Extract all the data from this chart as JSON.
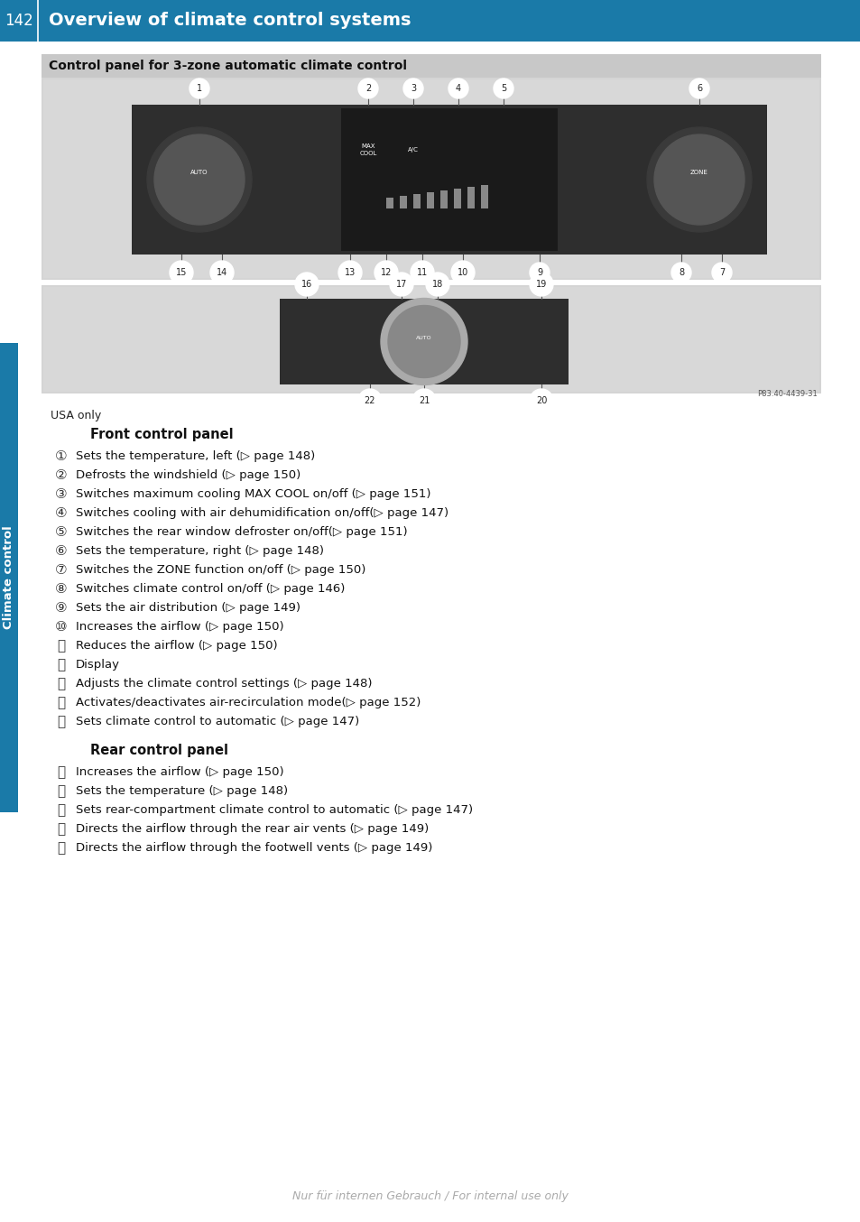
{
  "page_number": "142",
  "header_title": "Overview of climate control systems",
  "header_bg": "#1a7aa8",
  "header_text_color": "#ffffff",
  "sidebar_label": "Climate control",
  "sidebar_color": "#1a7aa8",
  "panel_box_title": "Control panel for 3-zone automatic climate control",
  "panel_box_bg": "#c8c8c8",
  "usa_only": "USA only",
  "front_panel_header": "Front control panel",
  "rear_panel_header": "Rear control panel",
  "front_items": [
    [
      "①",
      "Sets the temperature, left (▷ page 148)"
    ],
    [
      "②",
      "Defrosts the windshield (▷ page 150)"
    ],
    [
      "③",
      "Switches maximum cooling MAX COOL on/off (▷ page 151)"
    ],
    [
      "④",
      "Switches cooling with air dehumidification on/off(▷ page 147)"
    ],
    [
      "⑤",
      "Switches the rear window defroster on/off(▷ page 151)"
    ],
    [
      "⑥",
      "Sets the temperature, right (▷ page 148)"
    ],
    [
      "⑦",
      "Switches the ZONE function on/off (▷ page 150)"
    ],
    [
      "⑧",
      "Switches climate control on/off (▷ page 146)"
    ],
    [
      "⑨",
      "Sets the air distribution (▷ page 149)"
    ],
    [
      "⑩",
      "Increases the airflow (▷ page 150)"
    ],
    [
      "⑪",
      "Reduces the airflow (▷ page 150)"
    ],
    [
      "⑫",
      "Display"
    ],
    [
      "⑬",
      "Adjusts the climate control settings (▷ page 148)"
    ],
    [
      "⑭",
      "Activates/deactivates air-recirculation mode(▷ page 152)"
    ],
    [
      "⑮",
      "Sets climate control to automatic (▷ page 147)"
    ]
  ],
  "rear_items": [
    [
      "⑯",
      "Increases the airflow (▷ page 150)"
    ],
    [
      "⑰",
      "Sets the temperature (▷ page 148)"
    ],
    [
      "⑱",
      "Sets rear-compartment climate control to automatic (▷ page 147)"
    ],
    [
      "⑲",
      "Directs the airflow through the rear air vents (▷ page 149)"
    ],
    [
      "⑳",
      "Directs the airflow through the footwell vents (▷ page 149)"
    ]
  ],
  "watermark": "Nur für internen Gebrauch / For internal use only",
  "image_ref": "P83.40-4439-31",
  "bg_color": "#ffffff",
  "img_bg": "#d4d4d4",
  "panel_dark": "#2e2e2e",
  "dial_color": "#4a4a4a",
  "dial_ring_color": "#888888",
  "item_font_size": 9.5,
  "circle_num_font_size": 11
}
